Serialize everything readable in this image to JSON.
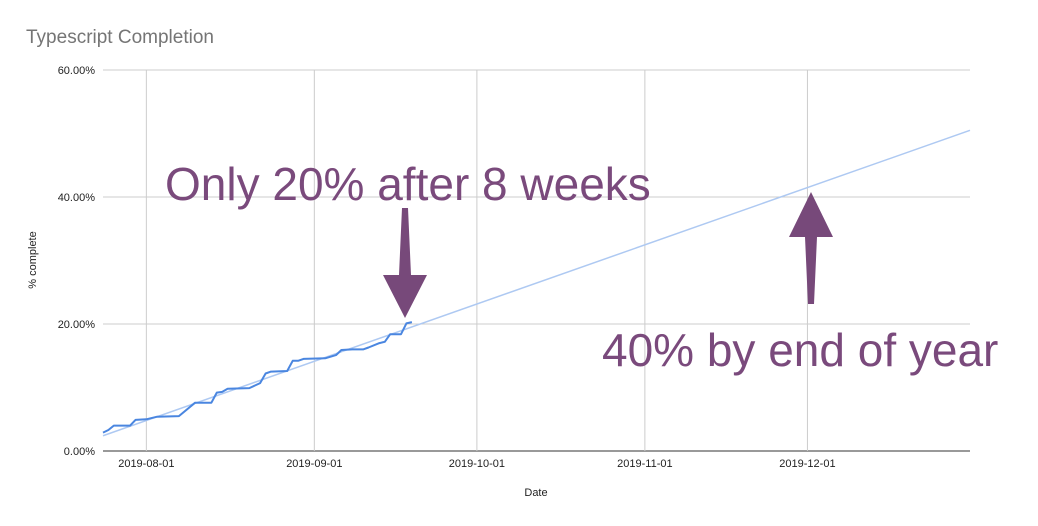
{
  "chart_data": {
    "type": "line",
    "title": "Typescript Completion",
    "xlabel": "Date",
    "ylabel": "% complete",
    "xlim": [
      "2019-07-24",
      "2019-12-31"
    ],
    "ylim": [
      0,
      60
    ],
    "x_ticks": [
      "2019-08-01",
      "2019-09-01",
      "2019-10-01",
      "2019-11-01",
      "2019-12-01"
    ],
    "y_ticks": [
      0,
      20,
      40,
      60
    ],
    "y_tick_labels": [
      "0.00%",
      "20.00%",
      "40.00%",
      "60.00%"
    ],
    "grid": true,
    "colors": {
      "series": "#4a86e0",
      "trendline": "#aec9f2",
      "annotation": "#7a4a7c"
    },
    "series": [
      {
        "x": [
          "2019-07-24",
          "2019-07-25",
          "2019-07-26",
          "2019-07-29",
          "2019-07-30",
          "2019-08-01",
          "2019-08-03",
          "2019-08-07",
          "2019-08-10",
          "2019-08-13",
          "2019-08-14",
          "2019-08-15",
          "2019-08-16",
          "2019-08-20",
          "2019-08-22",
          "2019-08-23",
          "2019-08-24",
          "2019-08-27",
          "2019-08-28",
          "2019-08-29",
          "2019-08-30",
          "2019-09-03",
          "2019-09-05",
          "2019-09-06",
          "2019-09-08",
          "2019-09-10",
          "2019-09-11",
          "2019-09-13",
          "2019-09-14",
          "2019-09-15",
          "2019-09-17",
          "2019-09-18",
          "2019-09-19"
        ],
        "values": [
          2.9,
          3.3,
          4.0,
          4.0,
          4.9,
          5.0,
          5.4,
          5.5,
          7.6,
          7.6,
          9.2,
          9.3,
          9.8,
          9.9,
          10.7,
          12.2,
          12.5,
          12.6,
          14.2,
          14.2,
          14.5,
          14.6,
          15.1,
          15.9,
          16.0,
          16.0,
          16.3,
          17.0,
          17.2,
          18.4,
          18.4,
          20.1,
          20.3
        ]
      }
    ],
    "trendline": {
      "x": [
        "2019-07-24",
        "2019-12-31"
      ],
      "values": [
        2.4,
        50.5
      ]
    },
    "annotations": [
      {
        "text": "Only 20% after 8 weeks",
        "arrow": "down",
        "points_to": "2019-09-19"
      },
      {
        "text": "40% by end of year",
        "arrow": "up",
        "points_to": "2019-12-01"
      }
    ]
  }
}
